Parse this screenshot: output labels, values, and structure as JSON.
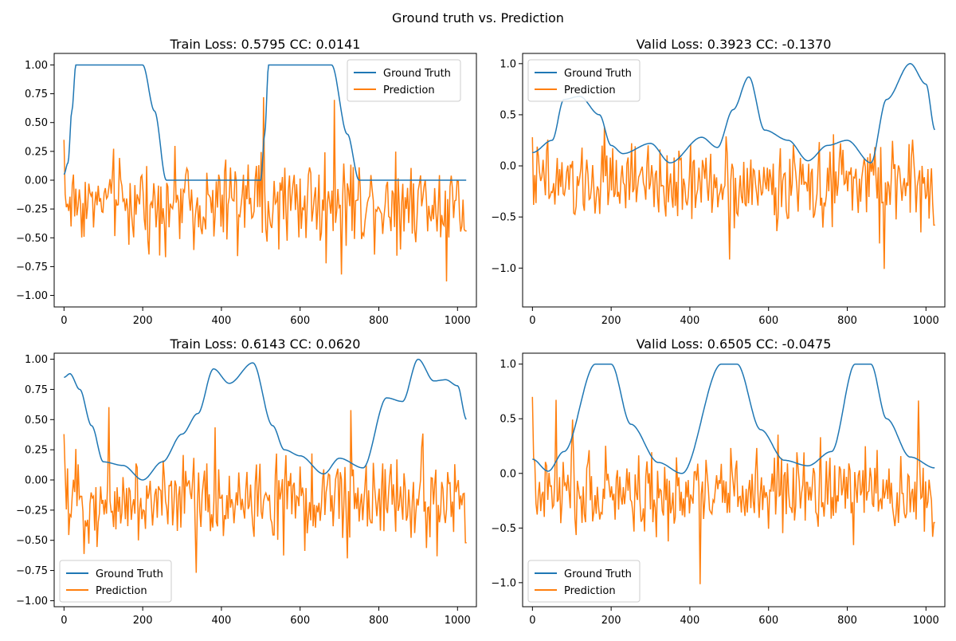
{
  "figure": {
    "title": "Ground truth vs. Prediction",
    "colors": {
      "ground_truth": "#1f77b4",
      "prediction": "#ff7f0e",
      "axes": "#000000",
      "background": "#ffffff"
    }
  },
  "chart_data": [
    {
      "type": "line",
      "title": "Train Loss: 0.5795 CC: 0.0141",
      "xlabel": "",
      "ylabel": "",
      "xlim": [
        -25,
        1048
      ],
      "ylim": [
        -1.1,
        1.1
      ],
      "xticks": [
        0,
        200,
        400,
        600,
        800,
        1000
      ],
      "yticks": [
        -1.0,
        -0.75,
        -0.5,
        -0.25,
        0.0,
        0.25,
        0.5,
        0.75,
        1.0
      ],
      "ytick_labels": [
        "−1.00",
        "−0.75",
        "−0.50",
        "−0.25",
        "0.00",
        "0.25",
        "0.50",
        "0.75",
        "1.00"
      ],
      "grid": false,
      "legend_position": "upper-right",
      "series": [
        {
          "name": "Ground Truth",
          "x": [
            0,
            10,
            20,
            30,
            200,
            230,
            260,
            500,
            510,
            520,
            680,
            720,
            750,
            1023
          ],
          "values": [
            0.05,
            0.15,
            0.6,
            1.0,
            1.0,
            0.6,
            0.0,
            0.0,
            0.4,
            1.0,
            1.0,
            0.4,
            0.0,
            0.0
          ]
        },
        {
          "name": "Prediction",
          "x": [
            0,
            1023
          ],
          "values": [
            0.35,
            -0.44
          ]
        }
      ]
    },
    {
      "type": "line",
      "title": "Valid Loss: 0.3923 CC: -0.1370",
      "xlabel": "",
      "ylabel": "",
      "xlim": [
        -25,
        1048
      ],
      "ylim": [
        -1.38,
        1.1
      ],
      "xticks": [
        0,
        200,
        400,
        600,
        800,
        1000
      ],
      "yticks": [
        -1.0,
        -0.5,
        0.0,
        0.5,
        1.0
      ],
      "ytick_labels": [
        "−1.0",
        "−0.5",
        "0.0",
        "0.5",
        "1.0"
      ],
      "grid": false,
      "legend_position": "upper-left",
      "series": [
        {
          "name": "Ground Truth",
          "x": [
            0,
            50,
            80,
            120,
            170,
            200,
            230,
            300,
            350,
            430,
            470,
            510,
            550,
            590,
            650,
            700,
            750,
            800,
            860,
            900,
            960,
            1000,
            1023
          ],
          "values": [
            0.13,
            0.25,
            0.65,
            0.68,
            0.5,
            0.2,
            0.12,
            0.22,
            0.03,
            0.28,
            0.18,
            0.55,
            0.87,
            0.35,
            0.25,
            0.05,
            0.2,
            0.25,
            0.03,
            0.65,
            1.0,
            0.8,
            0.35
          ]
        },
        {
          "name": "Prediction",
          "x": [
            0,
            1023
          ],
          "values": [
            0.28,
            -0.58
          ]
        }
      ]
    },
    {
      "type": "line",
      "title": "Train Loss: 0.6143 CC: 0.0620",
      "xlabel": "",
      "ylabel": "",
      "xlim": [
        -25,
        1048
      ],
      "ylim": [
        -1.05,
        1.05
      ],
      "xticks": [
        0,
        200,
        400,
        600,
        800,
        1000
      ],
      "yticks": [
        -1.0,
        -0.75,
        -0.5,
        -0.25,
        0.0,
        0.25,
        0.5,
        0.75,
        1.0
      ],
      "ytick_labels": [
        "−1.00",
        "−0.75",
        "−0.50",
        "−0.25",
        "0.00",
        "0.25",
        "0.50",
        "0.75",
        "1.00"
      ],
      "grid": false,
      "legend_position": "lower-left",
      "series": [
        {
          "name": "Ground Truth",
          "x": [
            0,
            15,
            40,
            70,
            100,
            150,
            200,
            250,
            300,
            340,
            380,
            420,
            480,
            530,
            560,
            600,
            660,
            700,
            760,
            820,
            860,
            900,
            940,
            970,
            1000,
            1023
          ],
          "values": [
            0.85,
            0.88,
            0.75,
            0.45,
            0.15,
            0.12,
            0.0,
            0.15,
            0.38,
            0.55,
            0.92,
            0.8,
            0.97,
            0.45,
            0.25,
            0.2,
            0.05,
            0.18,
            0.1,
            0.68,
            0.65,
            1.0,
            0.82,
            0.83,
            0.78,
            0.5
          ]
        },
        {
          "name": "Prediction",
          "x": [
            0,
            1023
          ],
          "values": [
            0.38,
            -0.52
          ]
        }
      ]
    },
    {
      "type": "line",
      "title": "Valid Loss: 0.6505 CC: -0.0475",
      "xlabel": "",
      "ylabel": "",
      "xlim": [
        -25,
        1048
      ],
      "ylim": [
        -1.22,
        1.1
      ],
      "xticks": [
        0,
        200,
        400,
        600,
        800,
        1000
      ],
      "yticks": [
        -1.0,
        -0.5,
        0.0,
        0.5,
        1.0
      ],
      "ytick_labels": [
        "−1.0",
        "−0.5",
        "0.0",
        "0.5",
        "1.0"
      ],
      "grid": false,
      "legend_position": "lower-left",
      "series": [
        {
          "name": "Ground Truth",
          "x": [
            0,
            40,
            80,
            160,
            200,
            250,
            320,
            380,
            480,
            520,
            580,
            640,
            700,
            760,
            820,
            860,
            900,
            960,
            1023
          ],
          "values": [
            0.13,
            0.02,
            0.2,
            1.0,
            1.0,
            0.45,
            0.1,
            0.0,
            1.0,
            1.0,
            0.4,
            0.12,
            0.07,
            0.2,
            1.0,
            1.0,
            0.5,
            0.15,
            0.05
          ]
        },
        {
          "name": "Prediction",
          "x": [
            0,
            1023
          ],
          "values": [
            0.7,
            -0.45
          ]
        }
      ]
    }
  ]
}
